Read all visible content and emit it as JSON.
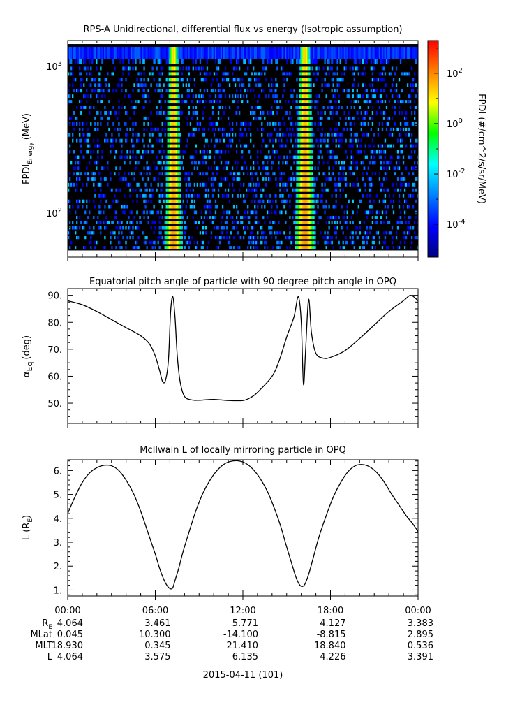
{
  "colors": {
    "background": "#ffffff",
    "spectrogram_background": "#000000",
    "colorbar_stops": [
      "#00007f",
      "#0000ff",
      "#0080ff",
      "#00ffff",
      "#00ff00",
      "#ffff00",
      "#ff8000",
      "#ff0000"
    ]
  },
  "chart_data": [
    {
      "type": "heatmap",
      "title": "RPS-A Unidirectional, differential flux vs energy (Isotropic assumption)",
      "ylabel_main": "FPDI",
      "ylabel_sub": "Energy",
      "ylabel_unit": "(MeV)",
      "y_scale": "log",
      "ylim": [
        50,
        1500
      ],
      "y_ticks": [
        {
          "value": 100,
          "base": "10",
          "exp": "2"
        },
        {
          "value": 1000,
          "base": "10",
          "exp": "3"
        }
      ],
      "x_range_hours": [
        0,
        24
      ],
      "energy_channels_mev": [
        58,
        63,
        68,
        73,
        79,
        86,
        93,
        101,
        110,
        120,
        131,
        143,
        156,
        170,
        185,
        202,
        220,
        240,
        262,
        286,
        312,
        340,
        371,
        405,
        442,
        482,
        526,
        574,
        626,
        683,
        745,
        813,
        887,
        968,
        1056,
        1300
      ],
      "bright_bands": [
        {
          "start_hour": 6.6,
          "end_hour": 7.9,
          "peak_log_flux": 1.2
        },
        {
          "start_hour": 15.5,
          "end_hour": 17.0,
          "peak_log_flux": 1.3
        }
      ],
      "top_channel_saturated": true,
      "background_hit_fraction": 0.33,
      "colorbar": {
        "label": "FPDI (#/cm^2/s/sr/MeV)",
        "range_log10": [
          -5.3,
          3.3
        ],
        "ticks": [
          {
            "value": 2,
            "base": "10",
            "exp": "2"
          },
          {
            "value": 0,
            "base": "10",
            "exp": "0"
          },
          {
            "value": -2,
            "base": "10",
            "exp": "-2"
          },
          {
            "value": -4,
            "base": "10",
            "exp": "-4"
          }
        ]
      }
    },
    {
      "type": "line",
      "title": "Equatorial pitch angle of particle with 90 degree pitch angle in OPQ",
      "ylabel_main": "α",
      "ylabel_sub": "Eq",
      "ylabel_unit": "(deg)",
      "ylim": [
        42.5,
        92.5
      ],
      "y_ticks": [
        50,
        60,
        70,
        80,
        90
      ],
      "y_tick_labels": [
        "50.",
        "60.",
        "70.",
        "80.",
        "90."
      ],
      "x_hours": [
        0,
        1,
        2,
        3,
        4,
        5,
        5.6,
        6,
        6.3,
        6.5,
        6.7,
        6.9,
        7.05,
        7.2,
        7.35,
        7.5,
        7.7,
        8.0,
        8.5,
        9.0,
        10.0,
        11.0,
        12.0,
        12.5,
        13.0,
        14.0,
        14.5,
        15.0,
        15.5,
        15.8,
        16.0,
        16.15,
        16.3,
        16.5,
        16.7,
        17.0,
        17.5,
        18.0,
        19.0,
        20.0,
        21.0,
        22.0,
        23.0,
        23.5,
        24
      ],
      "y_values": [
        88.0,
        86.5,
        84.0,
        81.0,
        78.0,
        75.0,
        72.0,
        67.5,
        62.0,
        58.0,
        58.5,
        66.0,
        84.0,
        89.5,
        82.0,
        68.0,
        58.0,
        52.5,
        51.2,
        51.1,
        51.4,
        51.0,
        51.0,
        52.0,
        54.0,
        60.0,
        66.0,
        74.5,
        82.0,
        89.5,
        80.0,
        57.0,
        70.0,
        88.5,
        76.0,
        68.5,
        66.7,
        67.0,
        69.5,
        74.0,
        79.0,
        84.0,
        88.0,
        90.0,
        88.0
      ]
    },
    {
      "type": "line",
      "title": "McIlwain L of locally mirroring particle in OPQ",
      "ylabel_main": "L (R",
      "ylabel_sub": "E",
      "ylabel_unit": ")",
      "ylim": [
        0.75,
        6.45
      ],
      "y_ticks": [
        1,
        2,
        3,
        4,
        5,
        6
      ],
      "y_tick_labels": [
        "1.",
        "2.",
        "3.",
        "4.",
        "5.",
        "6."
      ],
      "x_hours": [
        0,
        0.5,
        1.0,
        1.5,
        2.0,
        2.5,
        3.0,
        3.5,
        4.0,
        4.5,
        5.0,
        5.5,
        6.0,
        6.3,
        6.6,
        6.85,
        7.05,
        7.2,
        7.35,
        7.6,
        7.9,
        8.3,
        8.8,
        9.3,
        9.8,
        10.3,
        10.8,
        11.3,
        11.75,
        12.2,
        12.7,
        13.2,
        13.7,
        14.2,
        14.6,
        15.0,
        15.3,
        15.6,
        15.85,
        16.05,
        16.25,
        16.5,
        16.8,
        17.2,
        17.7,
        18.2,
        18.7,
        19.2,
        19.7,
        20.2,
        20.7,
        21.2,
        21.7,
        22.2,
        22.7,
        23.2,
        23.6,
        24
      ],
      "y_values": [
        4.2,
        4.9,
        5.5,
        5.9,
        6.12,
        6.22,
        6.2,
        6.0,
        5.6,
        5.05,
        4.3,
        3.4,
        2.5,
        1.9,
        1.42,
        1.15,
        1.05,
        1.1,
        1.4,
        1.9,
        2.6,
        3.4,
        4.35,
        5.1,
        5.65,
        6.05,
        6.3,
        6.4,
        6.4,
        6.3,
        6.05,
        5.65,
        5.1,
        4.35,
        3.65,
        2.8,
        2.2,
        1.6,
        1.25,
        1.15,
        1.25,
        1.65,
        2.3,
        3.2,
        4.1,
        4.9,
        5.5,
        5.95,
        6.2,
        6.25,
        6.15,
        5.9,
        5.5,
        5.0,
        4.55,
        4.1,
        3.8,
        3.45
      ]
    }
  ],
  "x_axis": {
    "tick_labels": [
      "00:00",
      "06:00",
      "12:00",
      "18:00",
      "00:00"
    ],
    "tick_hours": [
      0,
      6,
      12,
      18,
      24
    ],
    "ephemeris": [
      {
        "name_main": "R",
        "name_sub": "E",
        "values": [
          "4.064",
          "3.461",
          "5.771",
          "4.127",
          "3.383"
        ]
      },
      {
        "name_main": "MLat",
        "name_sub": "",
        "values": [
          "0.045",
          "10.300",
          "-14.100",
          "-8.815",
          "2.895"
        ]
      },
      {
        "name_main": "MLT",
        "name_sub": "",
        "values": [
          "18.930",
          "0.345",
          "21.410",
          "18.840",
          "0.536"
        ]
      },
      {
        "name_main": "L",
        "name_sub": "",
        "values": [
          "4.064",
          "3.575",
          "6.135",
          "4.226",
          "3.391"
        ]
      }
    ],
    "date_label": "2015-04-11 (101)"
  }
}
